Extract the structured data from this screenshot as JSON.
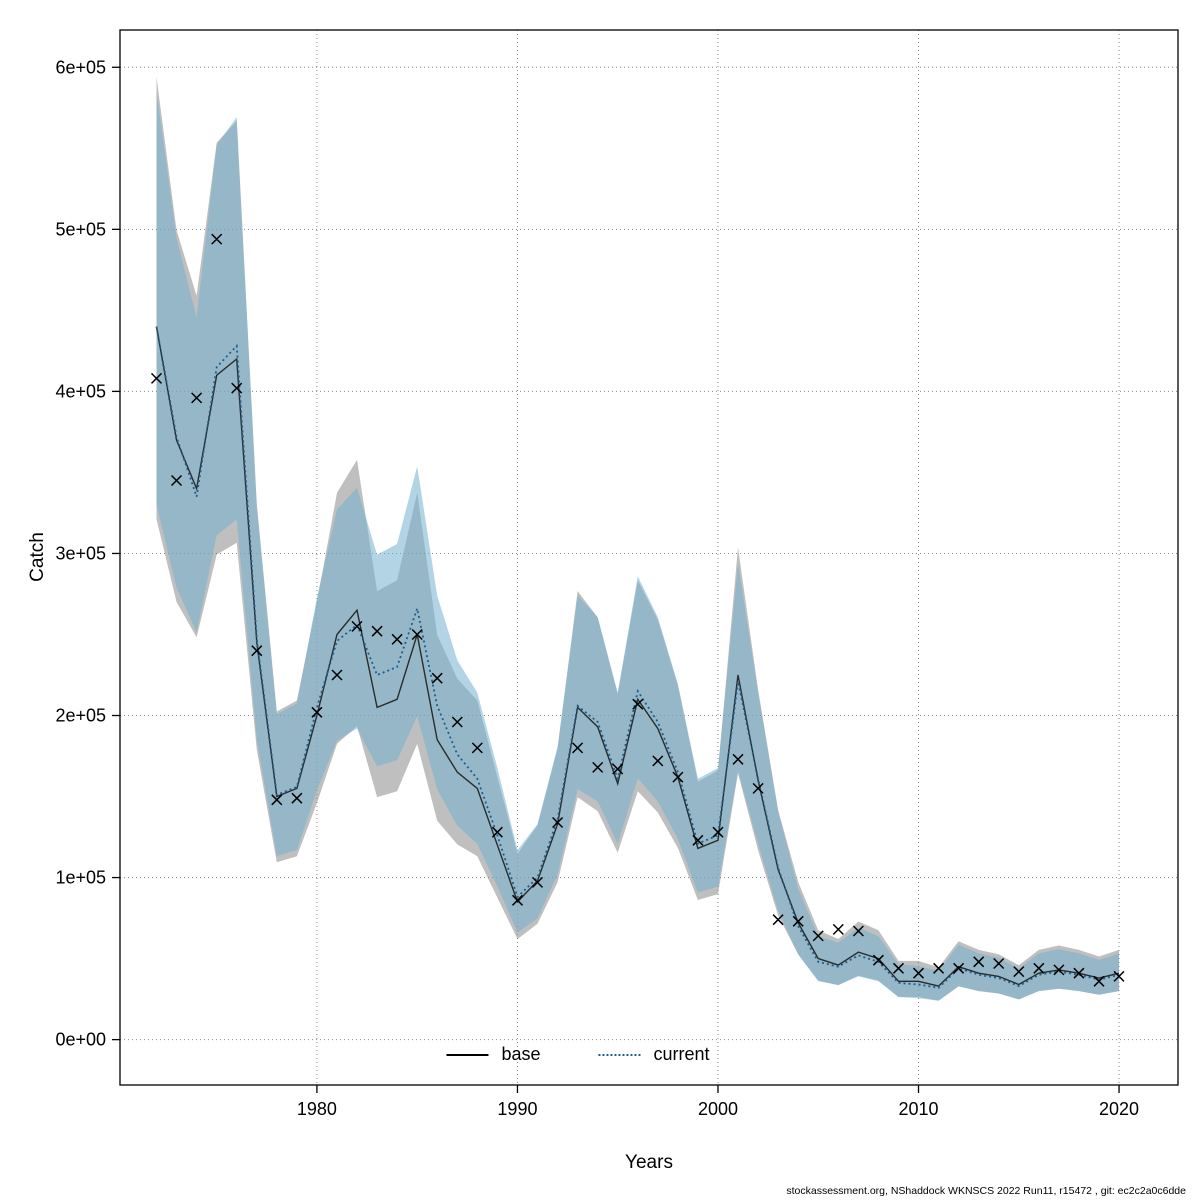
{
  "page": {
    "footer": "stockassessment.org, NShaddock  WKNSCS  2022  Run11, r15472 , git: ec2c2a0c6dde"
  },
  "chart_data": {
    "type": "line",
    "title": "",
    "xlabel": "Years",
    "ylabel": "Catch",
    "xlim": [
      1970.18,
      2022.94
    ],
    "ylim": [
      -28000,
      623000
    ],
    "xticks": [
      1980,
      1990,
      2000,
      2010,
      2020
    ],
    "yticks": [
      0,
      100000,
      200000,
      300000,
      400000,
      500000,
      600000
    ],
    "ytick_labels": [
      "0e+00",
      "1e+05",
      "2e+05",
      "3e+05",
      "4e+05",
      "5e+05",
      "6e+05"
    ],
    "grid": "dotted",
    "grid_color": "#888888",
    "legend": {
      "position": "bottom-center-inside",
      "entries": [
        {
          "label": "base",
          "style": "solid",
          "color": "#000000"
        },
        {
          "label": "current",
          "style": "dotted",
          "color": "#1d5d8f"
        }
      ]
    },
    "years": [
      1972,
      1973,
      1974,
      1975,
      1976,
      1977,
      1978,
      1979,
      1980,
      1981,
      1982,
      1983,
      1984,
      1985,
      1986,
      1987,
      1988,
      1989,
      1990,
      1991,
      1992,
      1993,
      1994,
      1995,
      1996,
      1997,
      1998,
      1999,
      2000,
      2001,
      2002,
      2003,
      2004,
      2005,
      2006,
      2007,
      2008,
      2009,
      2010,
      2011,
      2012,
      2013,
      2014,
      2015,
      2016,
      2017,
      2018,
      2019,
      2020
    ],
    "series": [
      {
        "name": "base",
        "style": "solid",
        "color": "#2b2b2b",
        "band_color": "#7f7f7f",
        "band_opacity": 0.5,
        "band_hi_factor": 1.35,
        "band_lo_factor": 0.73,
        "values": [
          440000,
          370000,
          340000,
          410000,
          420000,
          245000,
          150000,
          155000,
          200000,
          250000,
          265000,
          205000,
          210000,
          250000,
          185000,
          165000,
          155000,
          120000,
          85000,
          98000,
          133000,
          205000,
          193000,
          158000,
          210000,
          192000,
          162000,
          118000,
          123000,
          225000,
          160000,
          105000,
          72000,
          50000,
          46000,
          54000,
          50000,
          36000,
          36000,
          33000,
          45000,
          41000,
          39000,
          34000,
          41000,
          43000,
          41000,
          38000,
          41000
        ]
      },
      {
        "name": "current",
        "style": "dotted",
        "color": "#1d5d8f",
        "band_color": "#74b0cf",
        "band_opacity": 0.55,
        "band_hi_factor": 1.33,
        "band_lo_factor": 0.75,
        "values": [
          440000,
          372000,
          335000,
          415000,
          428000,
          247000,
          151000,
          156000,
          205000,
          246000,
          256000,
          225000,
          230000,
          266000,
          206000,
          176000,
          161000,
          126000,
          88000,
          100000,
          136000,
          206000,
          196000,
          161000,
          215000,
          196000,
          165000,
          121000,
          126000,
          221000,
          161000,
          106000,
          70000,
          48000,
          45000,
          52000,
          48000,
          35000,
          34000,
          32000,
          44000,
          40000,
          38000,
          33000,
          40000,
          42000,
          40000,
          37000,
          40000
        ]
      }
    ],
    "observations": {
      "marker": "x",
      "color": "#000000",
      "values": [
        408000,
        345000,
        396000,
        494000,
        402000,
        240000,
        148000,
        149000,
        202000,
        225000,
        255000,
        252000,
        247000,
        250000,
        223000,
        196000,
        180000,
        128000,
        86000,
        97000,
        134000,
        180000,
        168000,
        167000,
        207000,
        172000,
        162000,
        123000,
        128000,
        173000,
        155000,
        74000,
        73000,
        64000,
        68000,
        67000,
        49000,
        44000,
        41000,
        44000,
        44000,
        48000,
        47000,
        42000,
        44000,
        43000,
        41000,
        36000,
        39000
      ]
    }
  }
}
